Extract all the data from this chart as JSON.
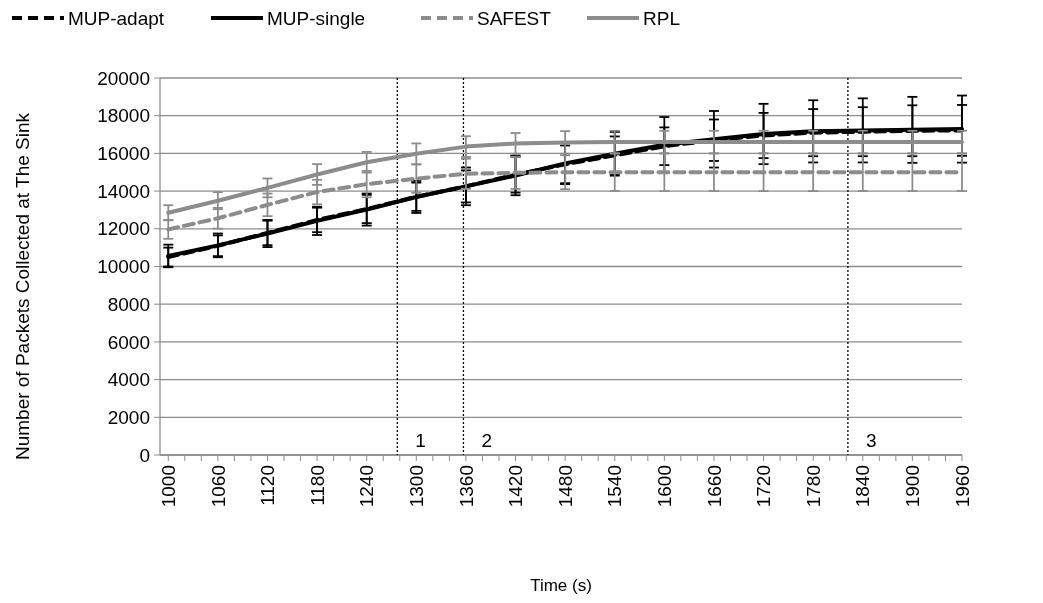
{
  "chart_data": {
    "type": "line",
    "xlabel": "Time (s)",
    "ylabel": "Number of Packets Collected at The Sink",
    "x": [
      1000,
      1060,
      1120,
      1180,
      1240,
      1300,
      1360,
      1420,
      1480,
      1540,
      1600,
      1660,
      1720,
      1780,
      1840,
      1900,
      1960
    ],
    "series": [
      {
        "name": "MUP-adapt",
        "color": "#000000",
        "line_style": "dashed",
        "values": [
          10500,
          11100,
          11780,
          12470,
          13050,
          13700,
          14250,
          14870,
          15420,
          15900,
          16380,
          16700,
          16950,
          17100,
          17150,
          17200,
          17220
        ],
        "errors": [
          500,
          550,
          650,
          650,
          750,
          750,
          850,
          950,
          1000,
          1000,
          1000,
          1100,
          1200,
          1250,
          1300,
          1350,
          1350
        ]
      },
      {
        "name": "MUP-single",
        "color": "#000000",
        "line_style": "solid",
        "values": [
          10560,
          11120,
          11750,
          12420,
          13020,
          13690,
          14250,
          14830,
          15470,
          15980,
          16460,
          16750,
          17030,
          17170,
          17220,
          17250,
          17290
        ],
        "errors": [
          600,
          630,
          720,
          750,
          850,
          850,
          1000,
          1050,
          1100,
          1160,
          1470,
          1500,
          1600,
          1650,
          1700,
          1750,
          1780
        ]
      },
      {
        "name": "SAFEST",
        "color": "#8c8c8c",
        "line_style": "dashed",
        "values": [
          11970,
          12560,
          13270,
          13950,
          14370,
          14660,
          14920,
          14970,
          15000,
          15000,
          15000,
          15000,
          15000,
          15000,
          15000,
          15000,
          15000
        ],
        "errors": [
          500,
          550,
          600,
          650,
          700,
          750,
          800,
          850,
          900,
          1000,
          1000,
          1000,
          1000,
          1000,
          1000,
          1000,
          1000
        ]
      },
      {
        "name": "RPL",
        "color": "#8c8c8c",
        "line_style": "solid",
        "values": [
          12850,
          13490,
          14170,
          14880,
          15530,
          15980,
          16360,
          16530,
          16580,
          16600,
          16600,
          16600,
          16600,
          16600,
          16600,
          16600,
          16600
        ],
        "errors": [
          400,
          450,
          500,
          550,
          550,
          550,
          550,
          550,
          600,
          600,
          600,
          600,
          600,
          600,
          600,
          600,
          600
        ]
      }
    ],
    "ref_lines": [
      {
        "axis": "x",
        "value": 1277,
        "line_style": "dotted",
        "color": "#000000"
      },
      {
        "axis": "x",
        "value": 1357,
        "line_style": "dotted",
        "color": "#000000"
      },
      {
        "axis": "x",
        "value": 1822,
        "line_style": "dotted",
        "color": "#000000"
      }
    ],
    "annotations": [
      "1",
      "2",
      "3"
    ],
    "xlim": [
      990,
      1960
    ],
    "xticks": [
      1000,
      {
        "value": 1020,
        "label": null
      },
      {
        "value": 1040,
        "label": null
      },
      1060,
      {
        "value": 1080,
        "label": null
      },
      {
        "value": 1100,
        "label": null
      },
      1120,
      {
        "value": 1140,
        "label": null
      },
      {
        "value": 1160,
        "label": null
      },
      1180,
      {
        "value": 1200,
        "label": null
      },
      {
        "value": 1220,
        "label": null
      },
      1240,
      {
        "value": 1260,
        "label": null
      },
      {
        "value": 1280,
        "label": null
      },
      1300,
      {
        "value": 1320,
        "label": null
      },
      {
        "value": 1340,
        "label": null
      },
      1360,
      {
        "value": 1380,
        "label": null
      },
      {
        "value": 1400,
        "label": null
      },
      1420,
      {
        "value": 1440,
        "label": null
      },
      {
        "value": 1460,
        "label": null
      },
      1480,
      {
        "value": 1500,
        "label": null
      },
      {
        "value": 1520,
        "label": null
      },
      1540,
      {
        "value": 1560,
        "label": null
      },
      {
        "value": 1580,
        "label": null
      },
      1600,
      {
        "value": 1620,
        "label": null
      },
      {
        "value": 1640,
        "label": null
      },
      1660,
      {
        "value": 1680,
        "label": null
      },
      {
        "value": 1700,
        "label": null
      },
      1720,
      {
        "value": 1740,
        "label": null
      },
      {
        "value": 1760,
        "label": null
      },
      1780,
      {
        "value": 1800,
        "label": null
      },
      {
        "value": 1820,
        "label": null
      },
      1840,
      {
        "value": 1860,
        "label": null
      },
      {
        "value": 1880,
        "label": null
      },
      1900,
      {
        "value": 1920,
        "label": null
      },
      {
        "value": 1940,
        "label": null
      },
      1960
    ],
    "ylim": [
      0,
      20000
    ],
    "yticks": [
      0,
      2000,
      4000,
      6000,
      8000,
      10000,
      12000,
      14000,
      16000,
      18000,
      20000
    ],
    "grid": "y",
    "legend": "top",
    "marker": "none"
  }
}
